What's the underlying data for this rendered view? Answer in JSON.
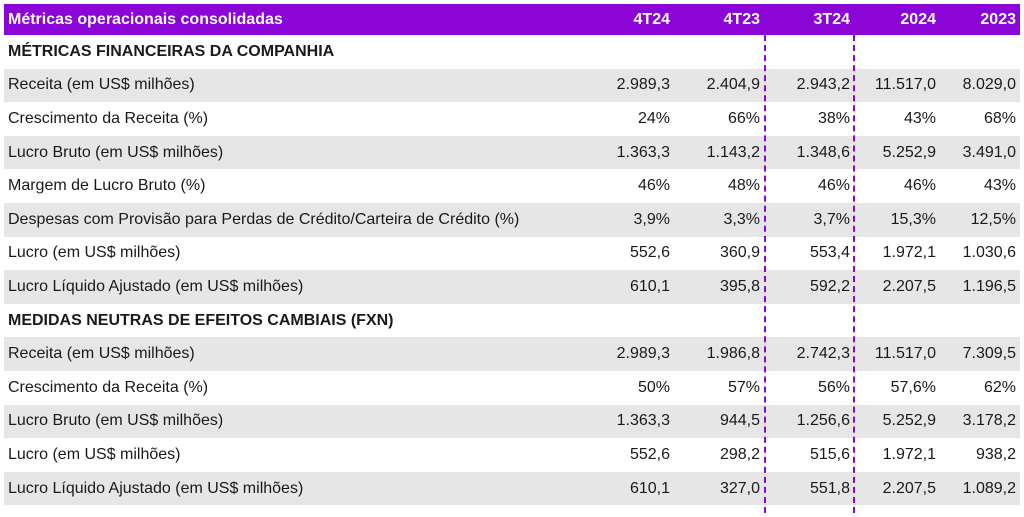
{
  "header": {
    "title": "Métricas operacionais consolidadas",
    "columns": [
      "4T24",
      "4T23",
      "3T24",
      "2024",
      "2023"
    ]
  },
  "sections": [
    {
      "title": "MÉTRICAS FINANCEIRAS DA COMPANHIA",
      "rows": [
        {
          "label": "Receita (em US$ milhões)",
          "values": [
            "2.989,3",
            "2.404,9",
            "2.943,2",
            "11.517,0",
            "8.029,0"
          ]
        },
        {
          "label": "Crescimento da Receita (%)",
          "values": [
            "24%",
            "66%",
            "38%",
            "43%",
            "68%"
          ]
        },
        {
          "label": "Lucro Bruto (em US$ milhões)",
          "values": [
            "1.363,3",
            "1.143,2",
            "1.348,6",
            "5.252,9",
            "3.491,0"
          ]
        },
        {
          "label": "Margem de Lucro Bruto (%)",
          "values": [
            "46%",
            "48%",
            "46%",
            "46%",
            "43%"
          ]
        },
        {
          "label": "Despesas com Provisão para Perdas de Crédito/Carteira de Crédito (%)",
          "values": [
            "3,9%",
            "3,3%",
            "3,7%",
            "15,3%",
            "12,5%"
          ]
        },
        {
          "label": "Lucro (em US$ milhões)",
          "values": [
            "552,6",
            "360,9",
            "553,4",
            "1.972,1",
            "1.030,6"
          ]
        },
        {
          "label": "Lucro Líquido Ajustado (em US$ milhões)",
          "values": [
            "610,1",
            "395,8",
            "592,2",
            "2.207,5",
            "1.196,5"
          ]
        }
      ]
    },
    {
      "title": "MEDIDAS NEUTRAS DE EFEITOS CAMBIAIS (FXN)",
      "rows": [
        {
          "label": "Receita (em US$ milhões)",
          "values": [
            "2.989,3",
            "1.986,8",
            "2.742,3",
            "11.517,0",
            "7.309,5"
          ]
        },
        {
          "label": "Crescimento da Receita (%)",
          "values": [
            "50%",
            "57%",
            "56%",
            "57,6%",
            "62%"
          ]
        },
        {
          "label": "Lucro Bruto (em US$ milhões)",
          "values": [
            "1.363,3",
            "944,5",
            "1.256,6",
            "5.252,9",
            "3.178,2"
          ]
        },
        {
          "label": "Lucro (em US$ milhões)",
          "values": [
            "552,6",
            "298,2",
            "515,6",
            "1.972,1",
            "938,2"
          ]
        },
        {
          "label": "Lucro Líquido Ajustado (em US$ milhões)",
          "values": [
            "610,1",
            "327,0",
            "551,8",
            "2.207,5",
            "1.089,2"
          ]
        }
      ]
    }
  ],
  "colors": {
    "accent": "#8a05d6",
    "shaded_row": "#e6e6e6"
  }
}
